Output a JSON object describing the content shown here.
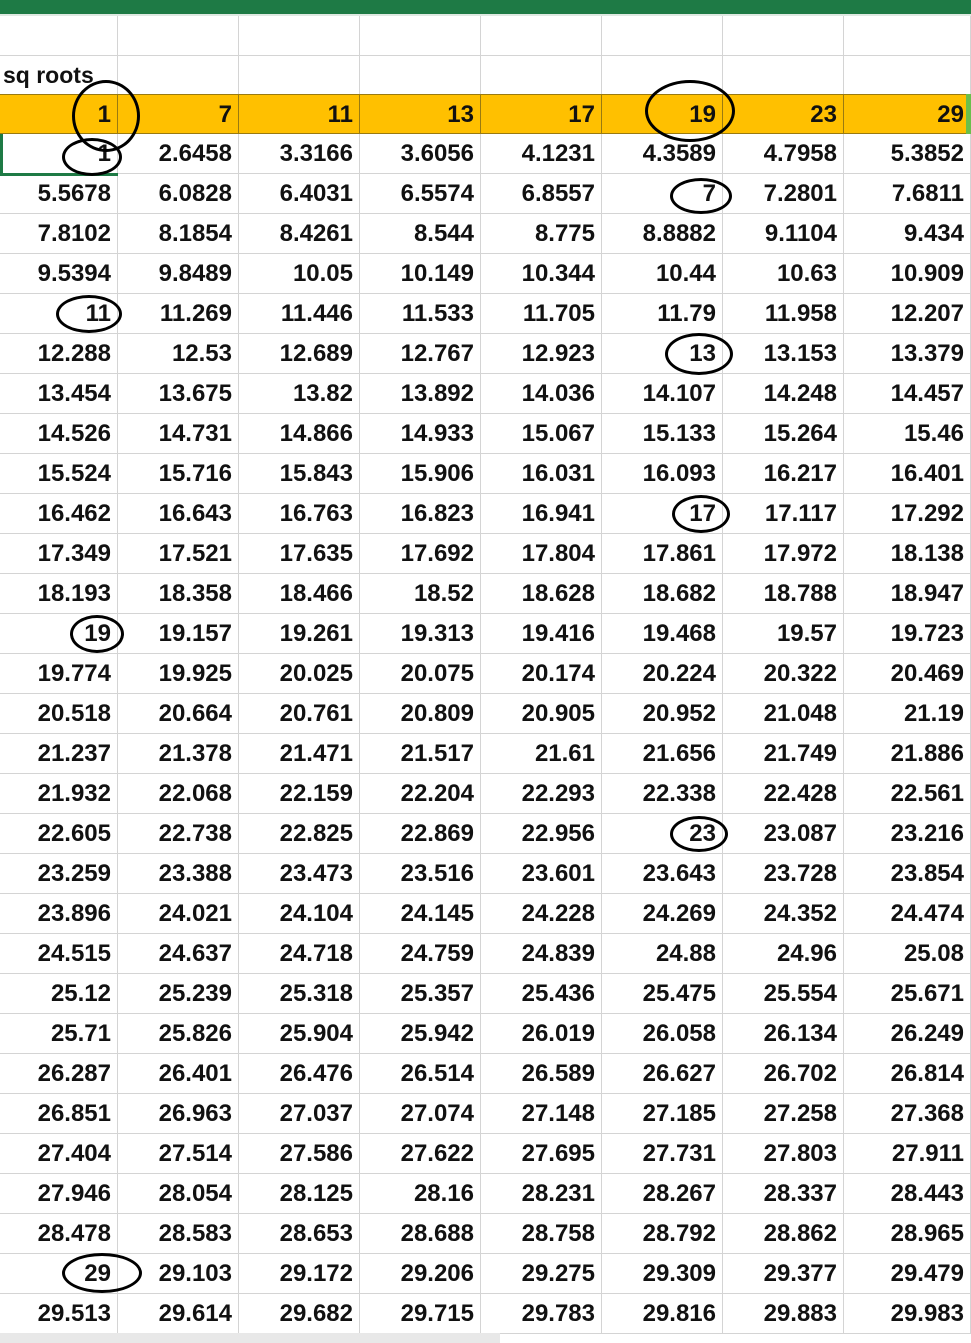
{
  "sheet": {
    "label": "sq roots",
    "header": [
      "1",
      "7",
      "11",
      "13",
      "17",
      "19",
      "23",
      "29"
    ],
    "rows": [
      [
        "1",
        "2.6458",
        "3.3166",
        "3.6056",
        "4.1231",
        "4.3589",
        "4.7958",
        "5.3852"
      ],
      [
        "5.5678",
        "6.0828",
        "6.4031",
        "6.5574",
        "6.8557",
        "7",
        "7.2801",
        "7.6811"
      ],
      [
        "7.8102",
        "8.1854",
        "8.4261",
        "8.544",
        "8.775",
        "8.8882",
        "9.1104",
        "9.434"
      ],
      [
        "9.5394",
        "9.8489",
        "10.05",
        "10.149",
        "10.344",
        "10.44",
        "10.63",
        "10.909"
      ],
      [
        "11",
        "11.269",
        "11.446",
        "11.533",
        "11.705",
        "11.79",
        "11.958",
        "12.207"
      ],
      [
        "12.288",
        "12.53",
        "12.689",
        "12.767",
        "12.923",
        "13",
        "13.153",
        "13.379"
      ],
      [
        "13.454",
        "13.675",
        "13.82",
        "13.892",
        "14.036",
        "14.107",
        "14.248",
        "14.457"
      ],
      [
        "14.526",
        "14.731",
        "14.866",
        "14.933",
        "15.067",
        "15.133",
        "15.264",
        "15.46"
      ],
      [
        "15.524",
        "15.716",
        "15.843",
        "15.906",
        "16.031",
        "16.093",
        "16.217",
        "16.401"
      ],
      [
        "16.462",
        "16.643",
        "16.763",
        "16.823",
        "16.941",
        "17",
        "17.117",
        "17.292"
      ],
      [
        "17.349",
        "17.521",
        "17.635",
        "17.692",
        "17.804",
        "17.861",
        "17.972",
        "18.138"
      ],
      [
        "18.193",
        "18.358",
        "18.466",
        "18.52",
        "18.628",
        "18.682",
        "18.788",
        "18.947"
      ],
      [
        "19",
        "19.157",
        "19.261",
        "19.313",
        "19.416",
        "19.468",
        "19.57",
        "19.723"
      ],
      [
        "19.774",
        "19.925",
        "20.025",
        "20.075",
        "20.174",
        "20.224",
        "20.322",
        "20.469"
      ],
      [
        "20.518",
        "20.664",
        "20.761",
        "20.809",
        "20.905",
        "20.952",
        "21.048",
        "21.19"
      ],
      [
        "21.237",
        "21.378",
        "21.471",
        "21.517",
        "21.61",
        "21.656",
        "21.749",
        "21.886"
      ],
      [
        "21.932",
        "22.068",
        "22.159",
        "22.204",
        "22.293",
        "22.338",
        "22.428",
        "22.561"
      ],
      [
        "22.605",
        "22.738",
        "22.825",
        "22.869",
        "22.956",
        "23",
        "23.087",
        "23.216"
      ],
      [
        "23.259",
        "23.388",
        "23.473",
        "23.516",
        "23.601",
        "23.643",
        "23.728",
        "23.854"
      ],
      [
        "23.896",
        "24.021",
        "24.104",
        "24.145",
        "24.228",
        "24.269",
        "24.352",
        "24.474"
      ],
      [
        "24.515",
        "24.637",
        "24.718",
        "24.759",
        "24.839",
        "24.88",
        "24.96",
        "25.08"
      ],
      [
        "25.12",
        "25.239",
        "25.318",
        "25.357",
        "25.436",
        "25.475",
        "25.554",
        "25.671"
      ],
      [
        "25.71",
        "25.826",
        "25.904",
        "25.942",
        "26.019",
        "26.058",
        "26.134",
        "26.249"
      ],
      [
        "26.287",
        "26.401",
        "26.476",
        "26.514",
        "26.589",
        "26.627",
        "26.702",
        "26.814"
      ],
      [
        "26.851",
        "26.963",
        "27.037",
        "27.074",
        "27.148",
        "27.185",
        "27.258",
        "27.368"
      ],
      [
        "27.404",
        "27.514",
        "27.586",
        "27.622",
        "27.695",
        "27.731",
        "27.803",
        "27.911"
      ],
      [
        "27.946",
        "28.054",
        "28.125",
        "28.16",
        "28.231",
        "28.267",
        "28.337",
        "28.443"
      ],
      [
        "28.478",
        "28.583",
        "28.653",
        "28.688",
        "28.758",
        "28.792",
        "28.862",
        "28.965"
      ],
      [
        "29",
        "29.103",
        "29.172",
        "29.206",
        "29.275",
        "29.309",
        "29.377",
        "29.479"
      ],
      [
        "29.513",
        "29.614",
        "29.682",
        "29.715",
        "29.783",
        "29.816",
        "29.883",
        "29.983"
      ]
    ]
  },
  "colors": {
    "header_fill": "#ffc000",
    "title_bar": "#1e7a45",
    "gridline": "#d4d4d4"
  }
}
